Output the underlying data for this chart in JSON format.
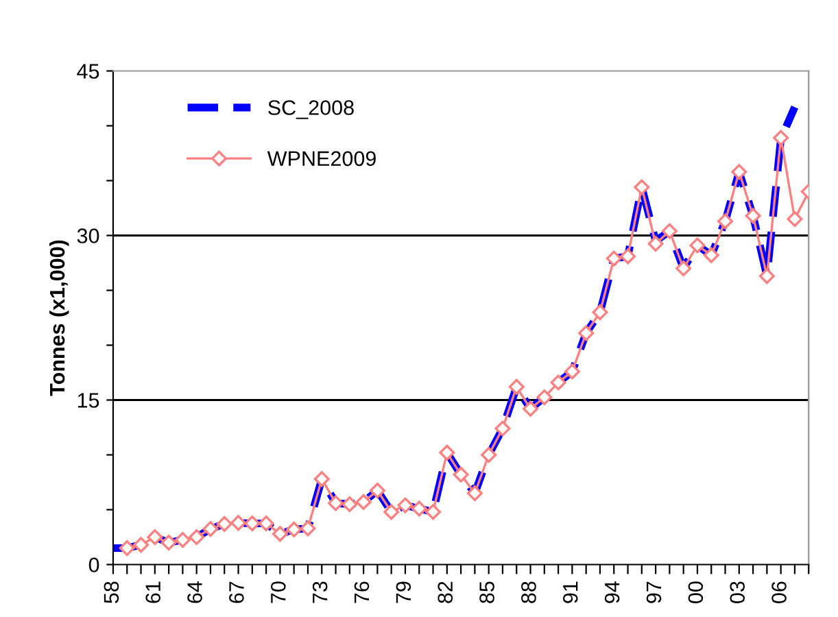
{
  "chart_data": {
    "type": "line",
    "ylabel": "Tonnes (x1,000)",
    "xlim": [
      1958,
      2008
    ],
    "xticks": [
      {
        "value": 1958,
        "label": "58"
      },
      {
        "value": 1959,
        "label": null
      },
      {
        "value": 1960,
        "label": null
      },
      {
        "value": 1961,
        "label": "61"
      },
      {
        "value": 1962,
        "label": null
      },
      {
        "value": 1963,
        "label": null
      },
      {
        "value": 1964,
        "label": "64"
      },
      {
        "value": 1965,
        "label": null
      },
      {
        "value": 1966,
        "label": null
      },
      {
        "value": 1967,
        "label": "67"
      },
      {
        "value": 1968,
        "label": null
      },
      {
        "value": 1969,
        "label": null
      },
      {
        "value": 1970,
        "label": "70"
      },
      {
        "value": 1971,
        "label": null
      },
      {
        "value": 1972,
        "label": null
      },
      {
        "value": 1973,
        "label": "73"
      },
      {
        "value": 1974,
        "label": null
      },
      {
        "value": 1975,
        "label": null
      },
      {
        "value": 1976,
        "label": "76"
      },
      {
        "value": 1977,
        "label": null
      },
      {
        "value": 1978,
        "label": null
      },
      {
        "value": 1979,
        "label": "79"
      },
      {
        "value": 1980,
        "label": null
      },
      {
        "value": 1981,
        "label": null
      },
      {
        "value": 1982,
        "label": "82"
      },
      {
        "value": 1983,
        "label": null
      },
      {
        "value": 1984,
        "label": null
      },
      {
        "value": 1985,
        "label": "85"
      },
      {
        "value": 1986,
        "label": null
      },
      {
        "value": 1987,
        "label": null
      },
      {
        "value": 1988,
        "label": "88"
      },
      {
        "value": 1989,
        "label": null
      },
      {
        "value": 1990,
        "label": null
      },
      {
        "value": 1991,
        "label": "91"
      },
      {
        "value": 1992,
        "label": null
      },
      {
        "value": 1993,
        "label": null
      },
      {
        "value": 1994,
        "label": "94"
      },
      {
        "value": 1995,
        "label": null
      },
      {
        "value": 1996,
        "label": null
      },
      {
        "value": 1997,
        "label": "97"
      },
      {
        "value": 1998,
        "label": null
      },
      {
        "value": 1999,
        "label": null
      },
      {
        "value": 2000,
        "label": "00"
      },
      {
        "value": 2001,
        "label": null
      },
      {
        "value": 2002,
        "label": null
      },
      {
        "value": 2003,
        "label": "03"
      },
      {
        "value": 2004,
        "label": null
      },
      {
        "value": 2005,
        "label": null
      },
      {
        "value": 2006,
        "label": "06"
      },
      {
        "value": 2007,
        "label": null
      },
      {
        "value": 2008,
        "label": null
      }
    ],
    "ylim": [
      0,
      45
    ],
    "yticks": [
      0,
      {
        "value": 5,
        "label": null
      },
      {
        "value": 10,
        "label": null
      },
      15,
      {
        "value": 20,
        "label": null
      },
      {
        "value": 25,
        "label": null
      },
      30,
      {
        "value": 35,
        "label": null
      },
      {
        "value": 40,
        "label": null
      },
      45
    ],
    "grid": "y",
    "legend": "top left",
    "series": [
      {
        "name": "SC_2008",
        "color": "#0000ff",
        "line_style": "dashed",
        "marker": "none",
        "x": [
          1958,
          1959,
          1960,
          1961,
          1962,
          1963,
          1964,
          1965,
          1966,
          1967,
          1968,
          1969,
          1970,
          1971,
          1972,
          1973,
          1974,
          1975,
          1976,
          1977,
          1978,
          1979,
          1980,
          1981,
          1982,
          1983,
          1984,
          1985,
          1986,
          1987,
          1988,
          1989,
          1990,
          1991,
          1992,
          1993,
          1994,
          1995,
          1996,
          1997,
          1998,
          1999,
          2000,
          2001,
          2002,
          2003,
          2004,
          2005,
          2006,
          2007
        ],
        "values": [
          1.5,
          1.5,
          1.8,
          2.5,
          2.0,
          2.25,
          2.5,
          3.25,
          3.7,
          3.8,
          3.75,
          3.75,
          2.8,
          3.2,
          3.3,
          7.8,
          5.6,
          5.5,
          5.7,
          6.75,
          4.8,
          5.4,
          5.1,
          4.8,
          10.2,
          8.2,
          6.5,
          10.0,
          12.4,
          16.2,
          14.2,
          15.25,
          16.6,
          17.6,
          21.1,
          23.0,
          27.9,
          28.1,
          34.4,
          29.5,
          30.4,
          27.0,
          29.1,
          28.2,
          31.3,
          35.8,
          31.8,
          26.3,
          38.8,
          41.7
        ]
      },
      {
        "name": "WPNE2009",
        "color": "#ff8080",
        "line_style": "solid",
        "marker": "diamond",
        "x": [
          1959,
          1960,
          1961,
          1962,
          1963,
          1964,
          1965,
          1966,
          1967,
          1968,
          1969,
          1970,
          1971,
          1972,
          1973,
          1974,
          1975,
          1976,
          1977,
          1978,
          1979,
          1980,
          1981,
          1982,
          1983,
          1984,
          1985,
          1986,
          1987,
          1988,
          1989,
          1990,
          1991,
          1992,
          1993,
          1994,
          1995,
          1996,
          1997,
          1998,
          1999,
          2000,
          2001,
          2002,
          2003,
          2004,
          2005,
          2006,
          2007,
          2008
        ],
        "values": [
          1.5,
          1.8,
          2.5,
          2.0,
          2.25,
          2.5,
          3.25,
          3.7,
          3.8,
          3.75,
          3.75,
          2.8,
          3.2,
          3.3,
          7.8,
          5.6,
          5.5,
          5.7,
          6.75,
          4.8,
          5.4,
          5.1,
          4.8,
          10.2,
          8.2,
          6.5,
          10.0,
          12.4,
          16.2,
          14.2,
          15.25,
          16.6,
          17.6,
          21.1,
          23.0,
          27.9,
          28.1,
          34.4,
          29.25,
          30.4,
          27.0,
          29.1,
          28.2,
          31.3,
          35.8,
          31.8,
          26.3,
          38.9,
          31.5,
          34.0
        ]
      }
    ]
  }
}
